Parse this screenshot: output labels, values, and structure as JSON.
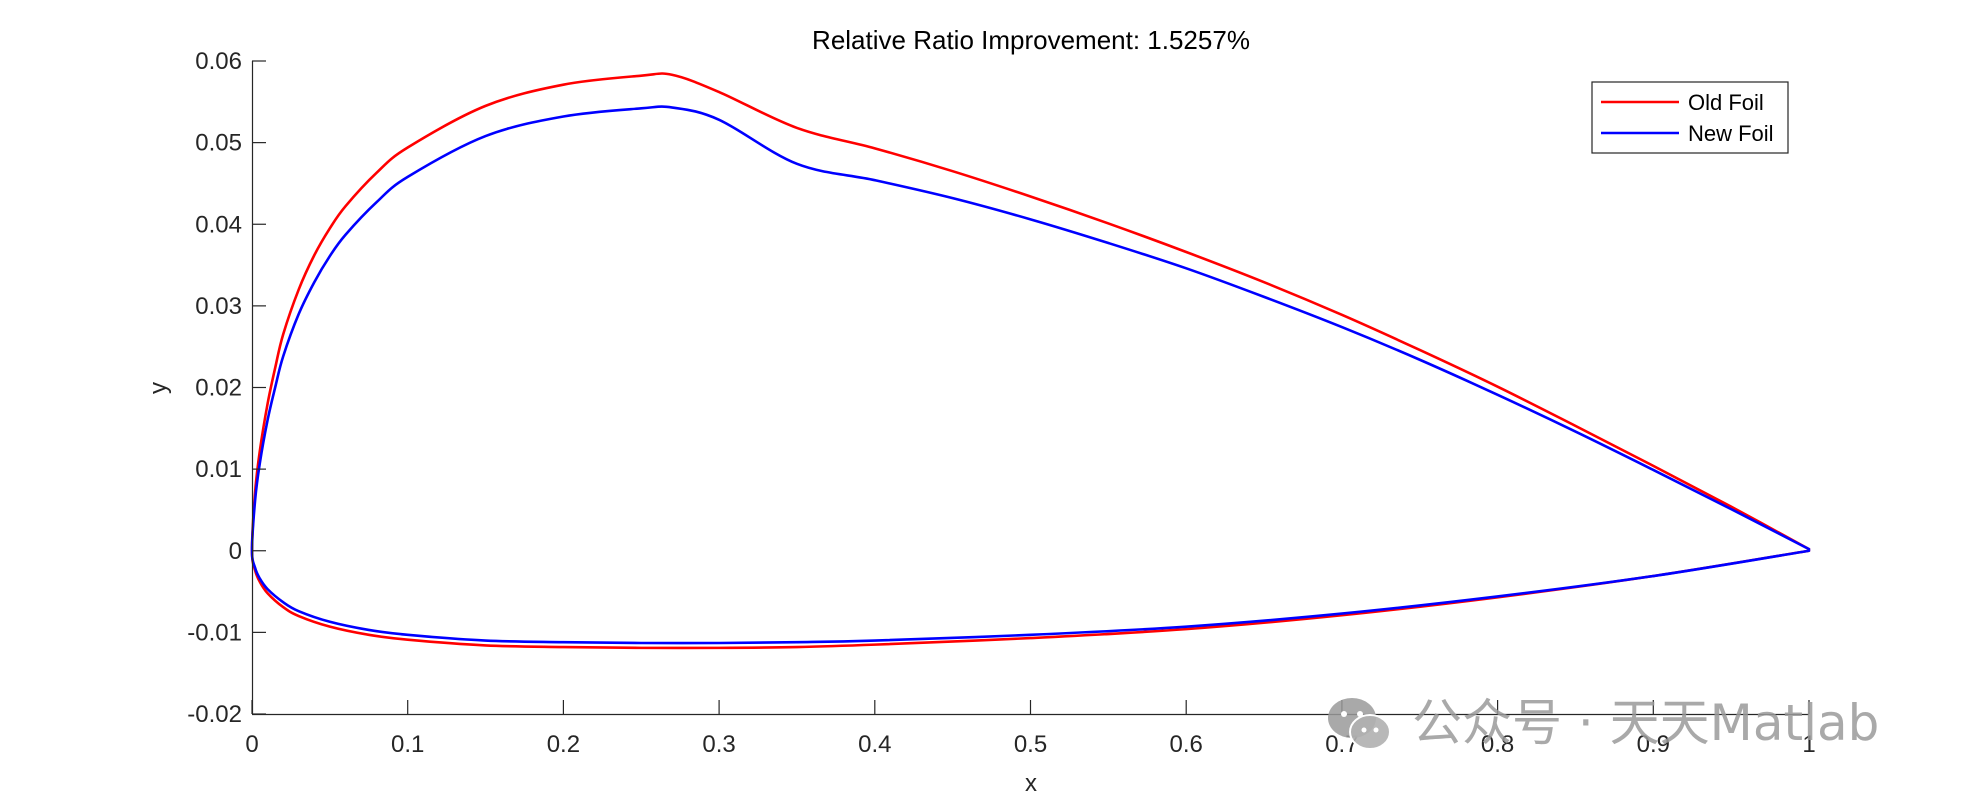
{
  "chart_data": {
    "type": "line",
    "title": "Relative Ratio Improvement: 1.5257%",
    "xlabel": "x",
    "ylabel": "y",
    "xlim": [
      0,
      1
    ],
    "ylim": [
      -0.02,
      0.06
    ],
    "xticks": [
      0,
      0.1,
      0.2,
      0.3,
      0.4,
      0.5,
      0.6,
      0.7,
      0.8,
      0.9,
      1
    ],
    "xtick_labels": [
      "0",
      "0.1",
      "0.2",
      "0.3",
      "0.4",
      "0.5",
      "0.6",
      "0.7",
      "0.8",
      "0.9",
      "1"
    ],
    "yticks": [
      -0.02,
      -0.01,
      0,
      0.01,
      0.02,
      0.03,
      0.04,
      0.05,
      0.06
    ],
    "ytick_labels": [
      "-0.02",
      "-0.01",
      "0",
      "0.01",
      "0.02",
      "0.03",
      "0.04",
      "0.05",
      "0.06"
    ],
    "grid": false,
    "legend_position": "top-right",
    "series": [
      {
        "name": "Old Foil",
        "color": "#ff0000",
        "x": [
          1.0,
          0.95,
          0.9,
          0.85,
          0.8,
          0.75,
          0.7,
          0.65,
          0.6,
          0.55,
          0.5,
          0.45,
          0.4,
          0.35,
          0.3,
          0.27,
          0.25,
          0.2,
          0.15,
          0.1,
          0.08,
          0.06,
          0.05,
          0.04,
          0.03,
          0.02,
          0.015,
          0.01,
          0.005,
          0.002,
          0.0,
          0.002,
          0.005,
          0.01,
          0.02,
          0.03,
          0.05,
          0.075,
          0.1,
          0.15,
          0.2,
          0.25,
          0.3,
          0.35,
          0.4,
          0.5,
          0.6,
          0.7,
          0.8,
          0.9,
          1.0
        ],
        "y": [
          0.0002,
          0.0054,
          0.0104,
          0.0153,
          0.0201,
          0.0246,
          0.0289,
          0.0329,
          0.0366,
          0.0401,
          0.0434,
          0.0465,
          0.0493,
          0.0518,
          0.0562,
          0.0583,
          0.0582,
          0.0571,
          0.0545,
          0.0494,
          0.0463,
          0.0422,
          0.0395,
          0.0362,
          0.032,
          0.0265,
          0.0225,
          0.018,
          0.0122,
          0.0072,
          0.0,
          -0.0024,
          -0.0038,
          -0.0052,
          -0.0069,
          -0.008,
          -0.0093,
          -0.0103,
          -0.0109,
          -0.0116,
          -0.0118,
          -0.0119,
          -0.0119,
          -0.0118,
          -0.0115,
          -0.0107,
          -0.0096,
          -0.0079,
          -0.0057,
          -0.0031,
          0.0
        ]
      },
      {
        "name": "New Foil",
        "color": "#0000ff",
        "x": [
          1.0,
          0.95,
          0.9,
          0.85,
          0.8,
          0.75,
          0.7,
          0.65,
          0.6,
          0.55,
          0.5,
          0.45,
          0.4,
          0.35,
          0.3,
          0.27,
          0.25,
          0.2,
          0.15,
          0.1,
          0.08,
          0.06,
          0.05,
          0.04,
          0.03,
          0.02,
          0.015,
          0.01,
          0.005,
          0.002,
          0.0,
          0.002,
          0.005,
          0.01,
          0.02,
          0.03,
          0.05,
          0.075,
          0.1,
          0.15,
          0.2,
          0.25,
          0.3,
          0.35,
          0.4,
          0.5,
          0.6,
          0.7,
          0.8,
          0.9,
          1.0
        ],
        "y": [
          0.0002,
          0.0051,
          0.0099,
          0.0146,
          0.0191,
          0.0234,
          0.0274,
          0.0311,
          0.0346,
          0.0377,
          0.0406,
          0.0432,
          0.0454,
          0.0474,
          0.0528,
          0.0543,
          0.0542,
          0.0532,
          0.0508,
          0.0458,
          0.0427,
          0.0387,
          0.0361,
          0.0329,
          0.029,
          0.0238,
          0.0201,
          0.016,
          0.0107,
          0.0062,
          0.0,
          -0.0021,
          -0.0034,
          -0.0047,
          -0.0063,
          -0.0074,
          -0.0087,
          -0.0097,
          -0.0103,
          -0.011,
          -0.0112,
          -0.0113,
          -0.0113,
          -0.0112,
          -0.011,
          -0.0103,
          -0.0093,
          -0.0077,
          -0.0056,
          -0.0031,
          0.0
        ]
      }
    ]
  },
  "watermark": {
    "text": "公众号 · 天天Matlab",
    "icon": "wechat-icon"
  }
}
